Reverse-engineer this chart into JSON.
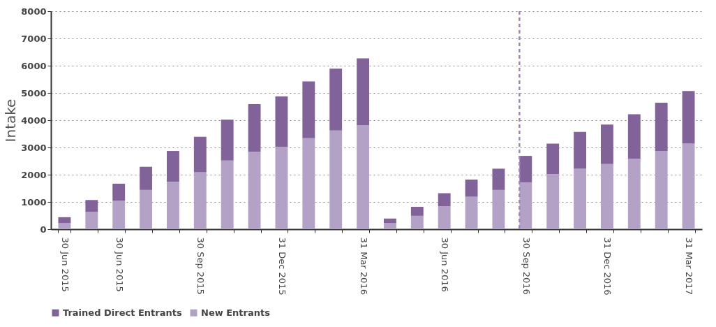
{
  "chart_data": {
    "type": "bar",
    "stacked": true,
    "ylabel": "Intake",
    "categories": [
      "30 Jun 2015",
      null,
      "30 Jun 2015",
      null,
      null,
      "30 Sep 2015",
      null,
      null,
      "31 Dec 2015",
      null,
      null,
      "31 Mar 2016",
      null,
      null,
      "30 Jun 2016",
      null,
      null,
      "30 Sep 2016",
      null,
      null,
      "31 Dec 2016",
      null,
      null,
      "31 Mar 2017"
    ],
    "series": [
      {
        "name": "New Entrants",
        "color": "#b3a2c6",
        "values": [
          220,
          640,
          1040,
          1440,
          1740,
          2090,
          2520,
          2840,
          3020,
          3340,
          3620,
          3820,
          220,
          490,
          840,
          1190,
          1440,
          1720,
          2020,
          2220,
          2390,
          2590,
          2870,
          3140
        ]
      },
      {
        "name": "Trained Direct Entrants",
        "color": "#826399",
        "values": [
          220,
          430,
          630,
          850,
          1130,
          1300,
          1500,
          1750,
          1850,
          2080,
          2270,
          2450,
          170,
          330,
          480,
          630,
          780,
          970,
          1120,
          1350,
          1450,
          1630,
          1770,
          1930
        ]
      }
    ],
    "ylim": [
      0,
      8000
    ],
    "yticks": [
      0,
      1000,
      2000,
      3000,
      4000,
      5000,
      6000,
      7000,
      8000
    ],
    "grid": "y",
    "legend": "bottom",
    "ref_lines": [
      {
        "axis": "x",
        "value": "30 Sep 2016",
        "color": "#9d84c0",
        "line_style": "dashed"
      }
    ]
  }
}
